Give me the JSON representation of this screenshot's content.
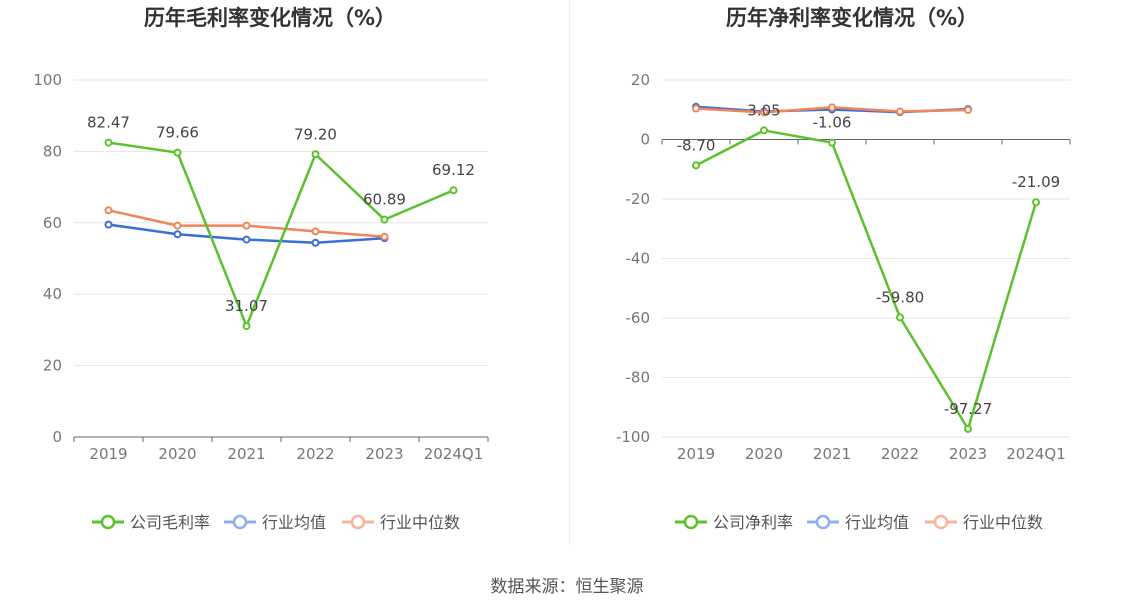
{
  "colors": {
    "company": "#5cc12e",
    "industry_avg": "#3a6fd8",
    "industry_median": "#f0845a",
    "industry_avg_legend": "#8fb0f0",
    "industry_median_legend": "#f6b59a",
    "grid": "#e6e6e6",
    "axis": "#666666",
    "text": "#666666",
    "title": "#333333"
  },
  "source": "数据来源：恒生聚源",
  "chart_data": [
    {
      "type": "line",
      "title": "历年毛利率变化情况（%）",
      "categories": [
        "2019",
        "2020",
        "2021",
        "2022",
        "2023",
        "2024Q1"
      ],
      "ylim": [
        0,
        100
      ],
      "yticks": [
        0,
        20,
        40,
        60,
        80,
        100
      ],
      "series": [
        {
          "name": "公司毛利率",
          "key": "company",
          "values": [
            82.47,
            79.66,
            31.07,
            79.2,
            60.89,
            69.12
          ],
          "labels": [
            "82.47",
            "79.66",
            "31.07",
            "79.20",
            "60.89",
            "69.12"
          ]
        },
        {
          "name": "行业均值",
          "key": "industry_avg",
          "values": [
            59.5,
            56.8,
            55.3,
            54.4,
            55.7,
            null
          ]
        },
        {
          "name": "行业中位数",
          "key": "industry_median",
          "values": [
            63.5,
            59.2,
            59.2,
            57.6,
            56.1,
            null
          ]
        }
      ]
    },
    {
      "type": "line",
      "title": "历年净利率变化情况（%）",
      "categories": [
        "2019",
        "2020",
        "2021",
        "2022",
        "2023",
        "2024Q1"
      ],
      "ylim": [
        -100,
        20
      ],
      "yticks": [
        -100,
        -80,
        -60,
        -40,
        -20,
        0,
        20
      ],
      "series": [
        {
          "name": "公司净利率",
          "key": "company",
          "values": [
            -8.7,
            3.05,
            -1.06,
            -59.8,
            -97.27,
            -21.09
          ],
          "labels": [
            "-8.70",
            "3.05",
            "-1.06",
            "-59.80",
            "-97.27",
            "-21.09"
          ]
        },
        {
          "name": "行业均值",
          "key": "industry_avg",
          "values": [
            11.0,
            9.4,
            10.1,
            9.2,
            10.2,
            null
          ]
        },
        {
          "name": "行业中位数",
          "key": "industry_median",
          "values": [
            10.4,
            9.1,
            10.8,
            9.4,
            9.9,
            null
          ]
        }
      ]
    }
  ]
}
